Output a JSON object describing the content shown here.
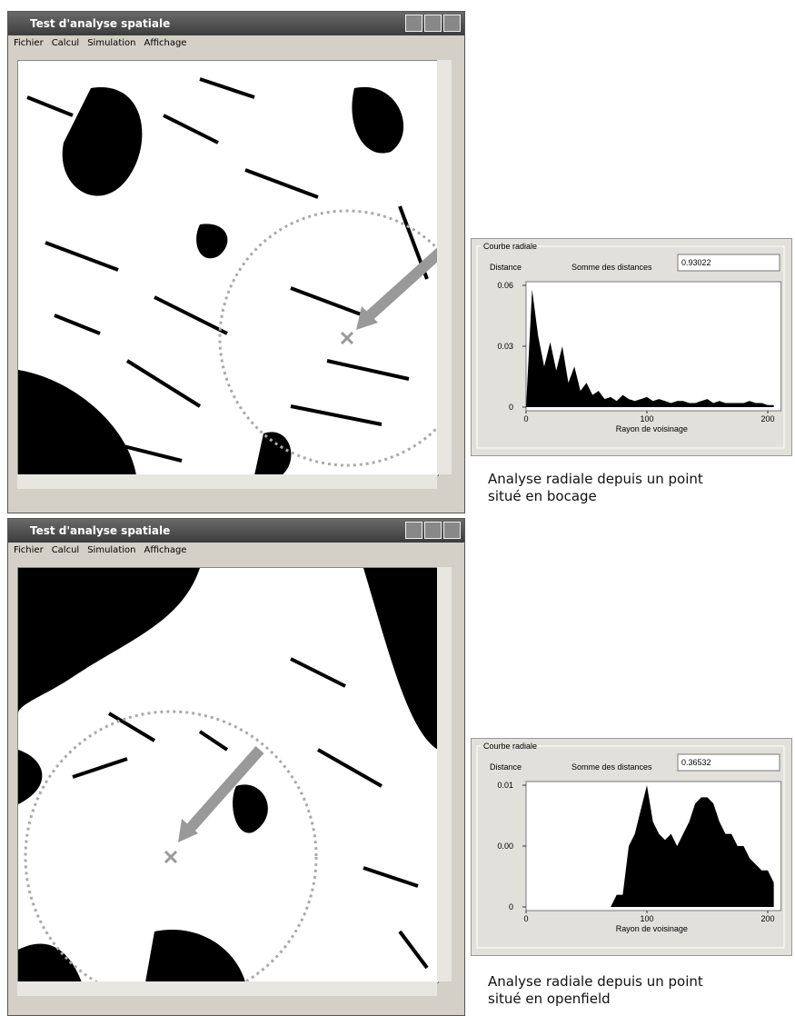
{
  "windows": [
    {
      "title": "Test d'analyse spatiale",
      "menu": [
        "Fichier",
        "Calcul",
        "Simulation",
        "Affichage"
      ]
    },
    {
      "title": "Test d'analyse spatiale",
      "menu": [
        "Fichier",
        "Calcul",
        "Simulation",
        "Affichage"
      ]
    }
  ],
  "panels": [
    {
      "group_label": "Courbe radiale",
      "distance_label": "Distance",
      "sum_label": "Somme des distances",
      "sum_value": 0.93022,
      "caption": [
        "Analyse radiale depuis un point",
        "situé en bocage"
      ],
      "chart_data": {
        "type": "area",
        "x_label": "Rayon de voisinage",
        "color": "#000000",
        "x": [
          0,
          5,
          10,
          15,
          20,
          25,
          30,
          35,
          40,
          45,
          50,
          55,
          60,
          65,
          70,
          75,
          80,
          85,
          90,
          95,
          100,
          105,
          110,
          115,
          120,
          125,
          130,
          135,
          140,
          145,
          150,
          155,
          160,
          165,
          170,
          175,
          180,
          185,
          190,
          195,
          200,
          205
        ],
        "values": [
          0,
          0.058,
          0.035,
          0.02,
          0.032,
          0.018,
          0.03,
          0.012,
          0.02,
          0.008,
          0.012,
          0.006,
          0.008,
          0.004,
          0.005,
          0.003,
          0.006,
          0.004,
          0.003,
          0.004,
          0.005,
          0.003,
          0.004,
          0.003,
          0.002,
          0.003,
          0.003,
          0.002,
          0.002,
          0.003,
          0.004,
          0.002,
          0.003,
          0.002,
          0.002,
          0.002,
          0.002,
          0.003,
          0.002,
          0.002,
          0.001,
          0.001
        ],
        "xlim": [
          0,
          208
        ],
        "ylim": [
          0,
          0.06
        ],
        "xticks": [
          0,
          100,
          200
        ],
        "yticks": [
          0,
          0.03,
          0.06
        ]
      }
    },
    {
      "group_label": "Courbe radiale",
      "distance_label": "Distance",
      "sum_label": "Somme des distances",
      "sum_value": 0.36532,
      "caption": [
        "Analyse radiale depuis un point",
        "situé en openfield"
      ],
      "chart_data": {
        "type": "area",
        "x_label": "Rayon de voisinage",
        "color": "#000000",
        "x": [
          0,
          5,
          10,
          15,
          20,
          25,
          30,
          35,
          40,
          45,
          50,
          55,
          60,
          65,
          70,
          75,
          80,
          85,
          90,
          95,
          100,
          105,
          110,
          115,
          120,
          125,
          130,
          135,
          140,
          145,
          150,
          155,
          160,
          165,
          170,
          175,
          180,
          185,
          190,
          195,
          200,
          205
        ],
        "values": [
          0,
          0,
          0,
          0,
          0,
          0,
          0,
          0,
          0,
          0,
          0,
          0,
          0,
          0,
          0,
          0.001,
          0.001,
          0.005,
          0.006,
          0.008,
          0.01,
          0.007,
          0.006,
          0.0055,
          0.006,
          0.005,
          0.006,
          0.007,
          0.0085,
          0.009,
          0.009,
          0.0085,
          0.007,
          0.006,
          0.006,
          0.005,
          0.005,
          0.004,
          0.0035,
          0.003,
          0.003,
          0.002
        ],
        "xlim": [
          0,
          208
        ],
        "ylim": [
          0,
          0.01
        ],
        "xticks": [
          0,
          100,
          200
        ],
        "yticks": [
          0,
          {
            "value": 0.005,
            "label": "0.00"
          },
          0.01
        ]
      }
    }
  ]
}
